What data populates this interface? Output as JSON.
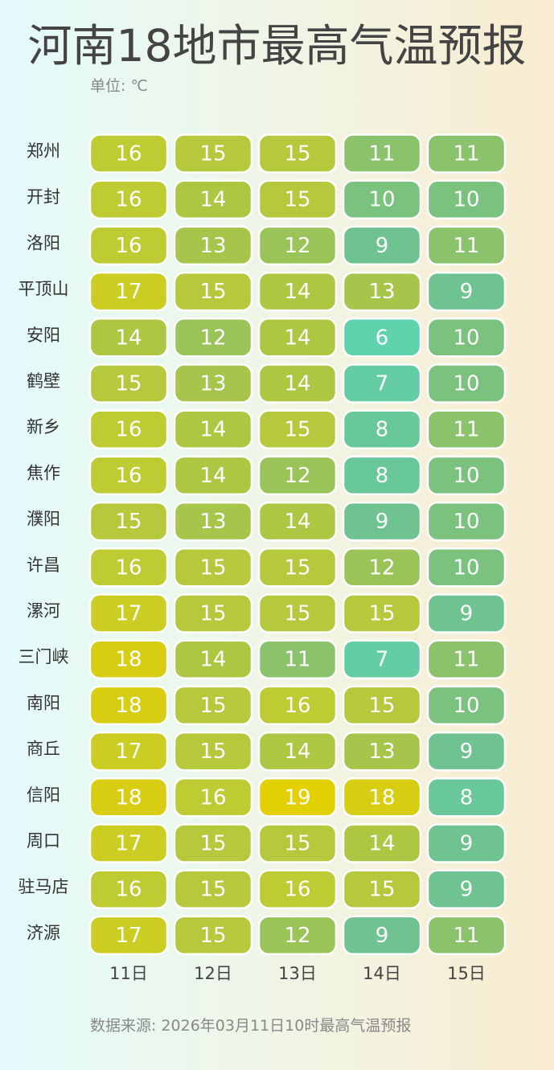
{
  "header": {
    "title": "河南18地市最高气温预报",
    "unit": "单位: ℃"
  },
  "footer": {
    "source": "数据来源: 2026年03月11日10时最高气温预报"
  },
  "chart_data": {
    "type": "heatmap",
    "title": "河南18地市最高气温预报",
    "unit": "℃",
    "rows": [
      "郑州",
      "开封",
      "洛阳",
      "平顶山",
      "安阳",
      "鹤壁",
      "新乡",
      "焦作",
      "濮阳",
      "许昌",
      "漯河",
      "三门峡",
      "南阳",
      "商丘",
      "信阳",
      "周口",
      "驻马店",
      "济源"
    ],
    "columns": [
      "11日",
      "12日",
      "13日",
      "14日",
      "15日"
    ],
    "values": [
      [
        16,
        15,
        15,
        11,
        11
      ],
      [
        16,
        14,
        15,
        10,
        10
      ],
      [
        16,
        13,
        12,
        9,
        11
      ],
      [
        17,
        15,
        14,
        13,
        9
      ],
      [
        14,
        12,
        14,
        6,
        10
      ],
      [
        15,
        13,
        14,
        7,
        10
      ],
      [
        16,
        14,
        15,
        8,
        11
      ],
      [
        16,
        14,
        12,
        8,
        10
      ],
      [
        15,
        13,
        14,
        9,
        10
      ],
      [
        16,
        15,
        15,
        12,
        10
      ],
      [
        17,
        15,
        15,
        15,
        9
      ],
      [
        18,
        14,
        11,
        7,
        11
      ],
      [
        18,
        15,
        16,
        15,
        10
      ],
      [
        17,
        15,
        14,
        13,
        9
      ],
      [
        18,
        16,
        19,
        18,
        8
      ],
      [
        17,
        15,
        15,
        14,
        9
      ],
      [
        16,
        15,
        16,
        15,
        9
      ],
      [
        17,
        15,
        12,
        9,
        11
      ]
    ],
    "value_range": [
      6,
      19
    ],
    "color_scale": [
      "#5ed2ad",
      "#70c28e",
      "#a2c44e",
      "#bccb36",
      "#e3d003"
    ],
    "grid": false,
    "legend": "none"
  }
}
